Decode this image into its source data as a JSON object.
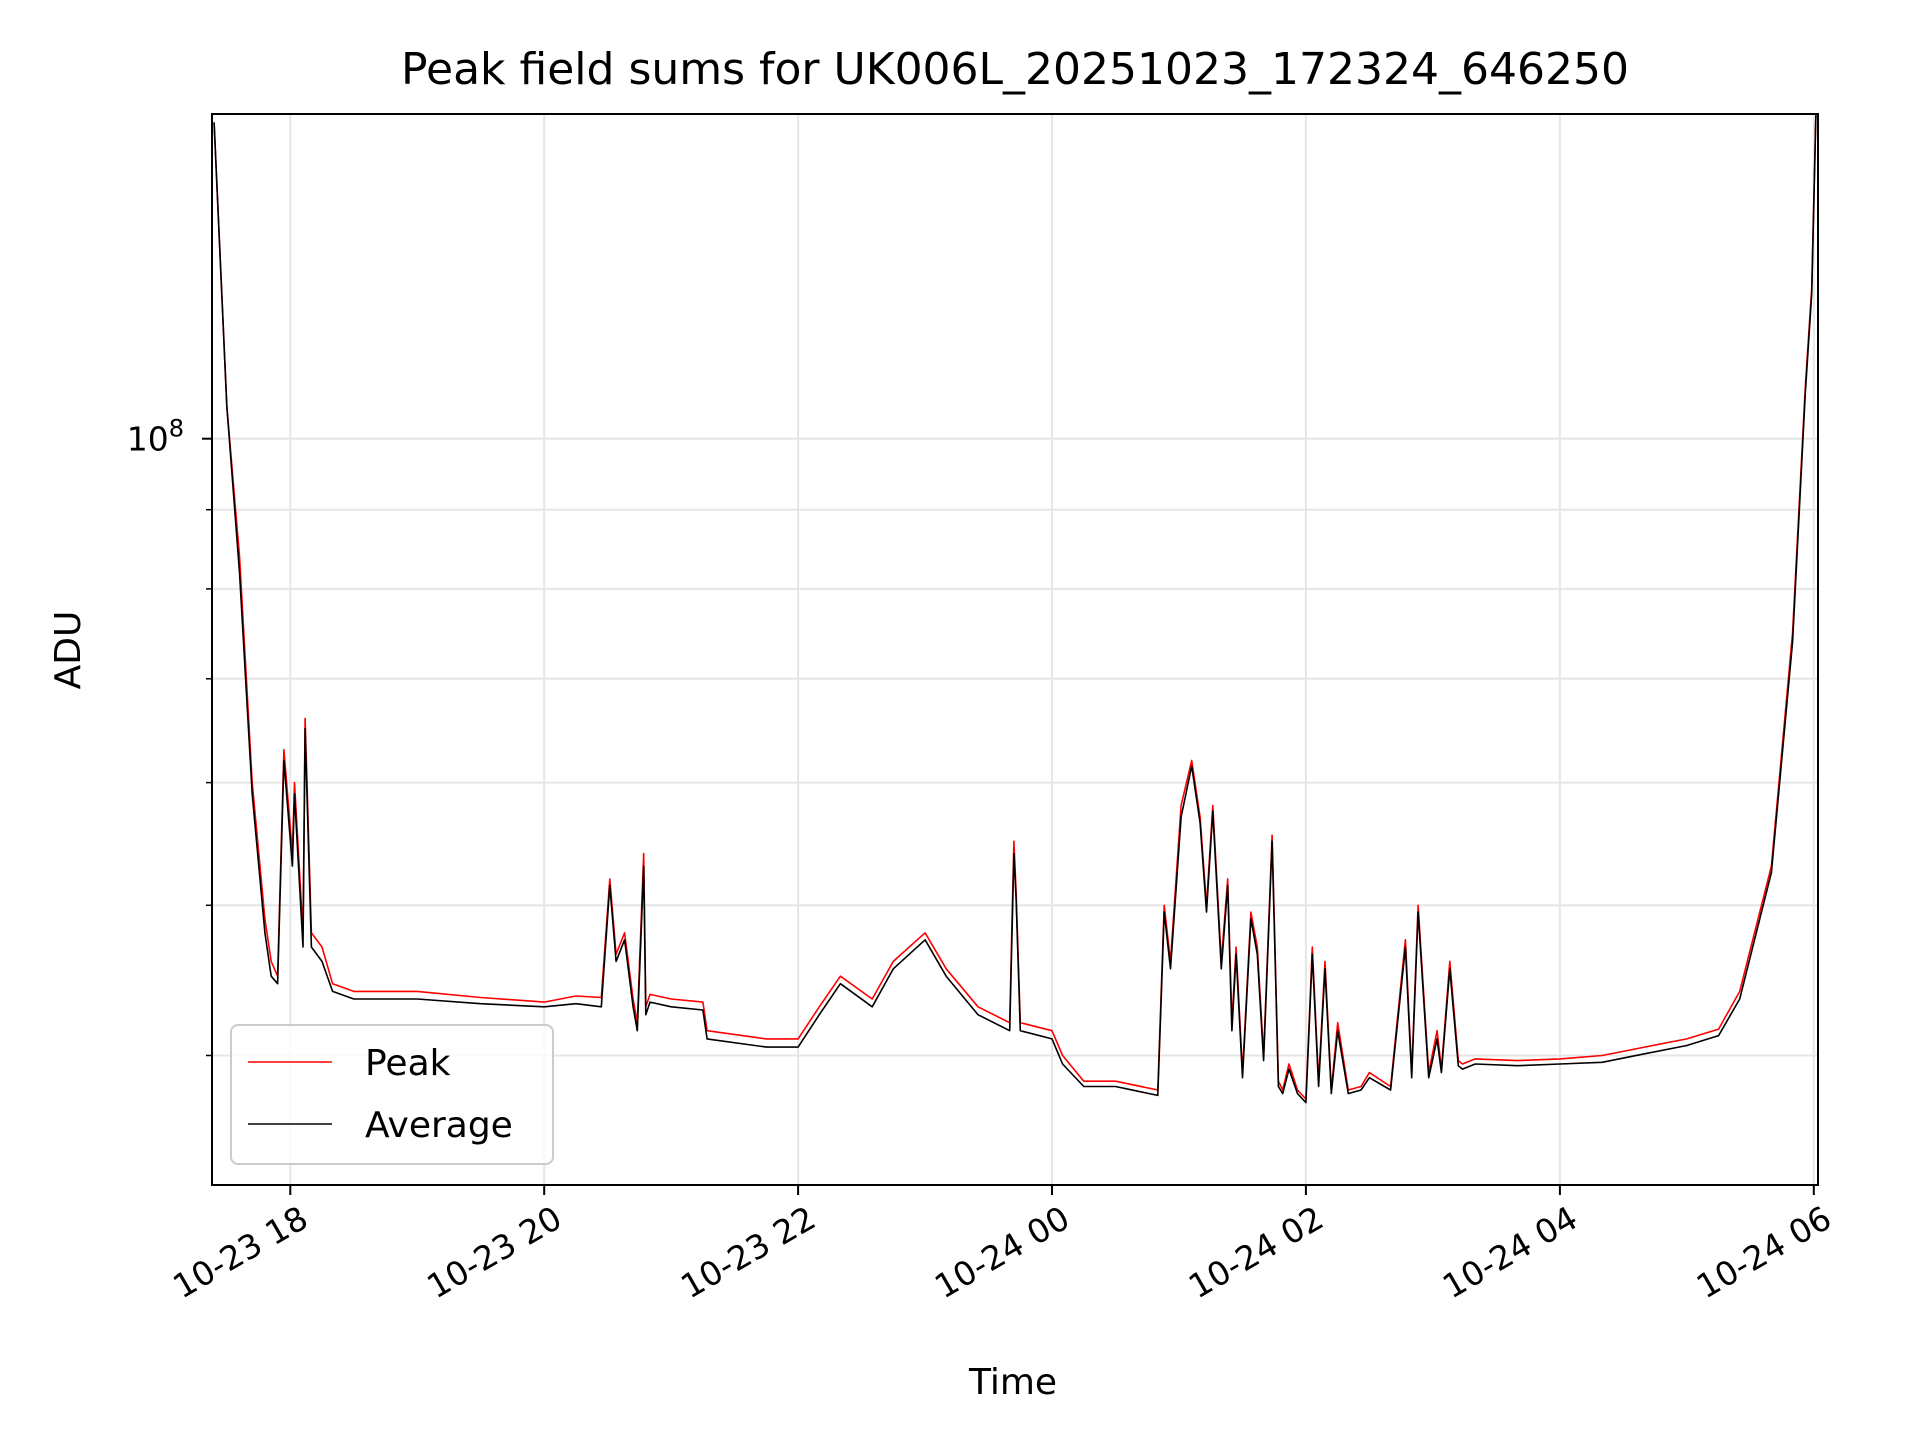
{
  "chart_data": {
    "type": "line",
    "title": "Peak field sums for UK006L_20251023_172324_646250",
    "xlabel": "Time",
    "ylabel": "ADU",
    "x_unit": "time",
    "xlim": [
      "2025-10-23T17:23",
      "2025-10-24T06:02"
    ],
    "ylim": [
      33000000.0,
      162000000.0
    ],
    "yscale": "log",
    "grid": true,
    "legend_position": "lower-left",
    "x_ticks": [
      {
        "t": "2025-10-23T18:00",
        "label": "10-23 18"
      },
      {
        "t": "2025-10-23T20:00",
        "label": "10-23 20"
      },
      {
        "t": "2025-10-23T22:00",
        "label": "10-23 22"
      },
      {
        "t": "2025-10-24T00:00",
        "label": "10-24 00"
      },
      {
        "t": "2025-10-24T02:00",
        "label": "10-24 02"
      },
      {
        "t": "2025-10-24T04:00",
        "label": "10-24 04"
      },
      {
        "t": "2025-10-24T06:00",
        "label": "10-24 06"
      }
    ],
    "y_major_ticks": [
      {
        "value": 100000000,
        "base": "10",
        "exp": "8"
      }
    ],
    "y_minor_ticks": [
      40000000,
      50000000,
      60000000,
      70000000,
      80000000,
      90000000,
      200000000
    ],
    "x": [
      "2025-10-23T17:24",
      "2025-10-23T17:30",
      "2025-10-23T17:36",
      "2025-10-23T17:42",
      "2025-10-23T17:48",
      "2025-10-23T17:51",
      "2025-10-23T17:54",
      "2025-10-23T17:57",
      "2025-10-23T18:01",
      "2025-10-23T18:02",
      "2025-10-23T18:06",
      "2025-10-23T18:07",
      "2025-10-23T18:10",
      "2025-10-23T18:15",
      "2025-10-23T18:20",
      "2025-10-23T18:30",
      "2025-10-23T19:00",
      "2025-10-23T19:30",
      "2025-10-23T20:00",
      "2025-10-23T20:15",
      "2025-10-23T20:27",
      "2025-10-23T20:31",
      "2025-10-23T20:34",
      "2025-10-23T20:38",
      "2025-10-23T20:42",
      "2025-10-23T20:44",
      "2025-10-23T20:47",
      "2025-10-23T20:48",
      "2025-10-23T20:50",
      "2025-10-23T21:00",
      "2025-10-23T21:15",
      "2025-10-23T21:17",
      "2025-10-23T21:45",
      "2025-10-23T22:00",
      "2025-10-23T22:10",
      "2025-10-23T22:20",
      "2025-10-23T22:35",
      "2025-10-23T22:45",
      "2025-10-23T23:00",
      "2025-10-23T23:10",
      "2025-10-23T23:25",
      "2025-10-23T23:40",
      "2025-10-23T23:42",
      "2025-10-23T23:43",
      "2025-10-23T23:45",
      "2025-10-24T00:00",
      "2025-10-24T00:05",
      "2025-10-24T00:15",
      "2025-10-24T00:30",
      "2025-10-24T00:50",
      "2025-10-24T00:53",
      "2025-10-24T00:56",
      "2025-10-24T01:01",
      "2025-10-24T01:06",
      "2025-10-24T01:10",
      "2025-10-24T01:13",
      "2025-10-24T01:16",
      "2025-10-24T01:20",
      "2025-10-24T01:23",
      "2025-10-24T01:25",
      "2025-10-24T01:27",
      "2025-10-24T01:30",
      "2025-10-24T01:34",
      "2025-10-24T01:37",
      "2025-10-24T01:40",
      "2025-10-24T01:44",
      "2025-10-24T01:47",
      "2025-10-24T01:49",
      "2025-10-24T01:52",
      "2025-10-24T01:56",
      "2025-10-24T02:00",
      "2025-10-24T02:03",
      "2025-10-24T02:06",
      "2025-10-24T02:09",
      "2025-10-24T02:12",
      "2025-10-24T02:15",
      "2025-10-24T02:20",
      "2025-10-24T02:26",
      "2025-10-24T02:30",
      "2025-10-24T02:40",
      "2025-10-24T02:47",
      "2025-10-24T02:50",
      "2025-10-24T02:53",
      "2025-10-24T02:58",
      "2025-10-24T03:02",
      "2025-10-24T03:04",
      "2025-10-24T03:08",
      "2025-10-24T03:12",
      "2025-10-24T03:14",
      "2025-10-24T03:20",
      "2025-10-24T03:40",
      "2025-10-24T04:00",
      "2025-10-24T04:20",
      "2025-10-24T04:40",
      "2025-10-24T05:00",
      "2025-10-24T05:15",
      "2025-10-24T05:25",
      "2025-10-24T05:40",
      "2025-10-24T05:50",
      "2025-10-24T05:56",
      "2025-10-24T05:59",
      "2025-10-24T06:01"
    ],
    "series": [
      {
        "name": "Peak",
        "color": "#ff0000",
        "values": [
          160000000,
          105000000,
          84000000,
          60000000,
          49000000,
          46000000,
          45000000,
          63000000,
          54000000,
          60000000,
          48000000,
          66000000,
          48000000,
          47000000,
          44500000,
          44000000,
          44000000,
          43600000,
          43300000,
          43700000,
          43600000,
          52000000,
          46500000,
          48000000,
          43500000,
          42000000,
          54000000,
          43000000,
          43800000,
          43500000,
          43300000,
          41500000,
          41000000,
          41000000,
          43000000,
          45000000,
          43500000,
          46000000,
          48000000,
          45500000,
          43000000,
          42000000,
          55000000,
          51000000,
          42000000,
          41500000,
          40000000,
          38500000,
          38500000,
          38000000,
          50000000,
          46000000,
          58000000,
          62000000,
          57000000,
          50000000,
          58000000,
          46000000,
          52000000,
          42000000,
          47000000,
          39000000,
          49500000,
          47000000,
          40000000,
          55500000,
          38500000,
          38000000,
          39500000,
          38000000,
          37500000,
          47000000,
          38500000,
          46000000,
          38000000,
          42000000,
          38000000,
          38200000,
          39000000,
          38200000,
          47500000,
          39000000,
          50000000,
          39000000,
          41500000,
          39200000,
          46000000,
          39700000,
          39500000,
          39800000,
          39700000,
          39800000,
          40000000,
          40500000,
          41000000,
          41600000,
          44000000,
          53000000,
          75000000,
          108000000,
          125000000,
          162000000
        ]
      },
      {
        "name": "Average",
        "color": "#000000",
        "values": [
          160000000,
          105000000,
          82000000,
          59000000,
          48000000,
          45000000,
          44500000,
          62000000,
          53000000,
          59000000,
          47000000,
          65000000,
          47000000,
          46000000,
          44000000,
          43500000,
          43500000,
          43200000,
          43000000,
          43200000,
          43000000,
          51500000,
          46000000,
          47500000,
          43000000,
          41500000,
          53000000,
          42500000,
          43300000,
          43000000,
          42800000,
          41000000,
          40500000,
          40500000,
          42500000,
          44500000,
          43000000,
          45500000,
          47500000,
          45000000,
          42500000,
          41500000,
          54000000,
          50500000,
          41500000,
          41000000,
          39500000,
          38200000,
          38200000,
          37700000,
          49500000,
          45500000,
          57000000,
          61500000,
          56500000,
          49500000,
          57500000,
          45500000,
          51500000,
          41500000,
          46500000,
          38700000,
          49000000,
          46500000,
          39700000,
          55000000,
          38200000,
          37800000,
          39200000,
          37800000,
          37300000,
          46500000,
          38200000,
          45500000,
          37800000,
          41500000,
          37800000,
          38000000,
          38700000,
          38000000,
          47000000,
          38700000,
          49500000,
          38700000,
          41000000,
          39000000,
          45500000,
          39400000,
          39200000,
          39500000,
          39400000,
          39500000,
          39600000,
          40100000,
          40600000,
          41200000,
          43500000,
          52500000,
          74000000,
          107000000,
          124000000,
          162000000
        ]
      }
    ]
  }
}
